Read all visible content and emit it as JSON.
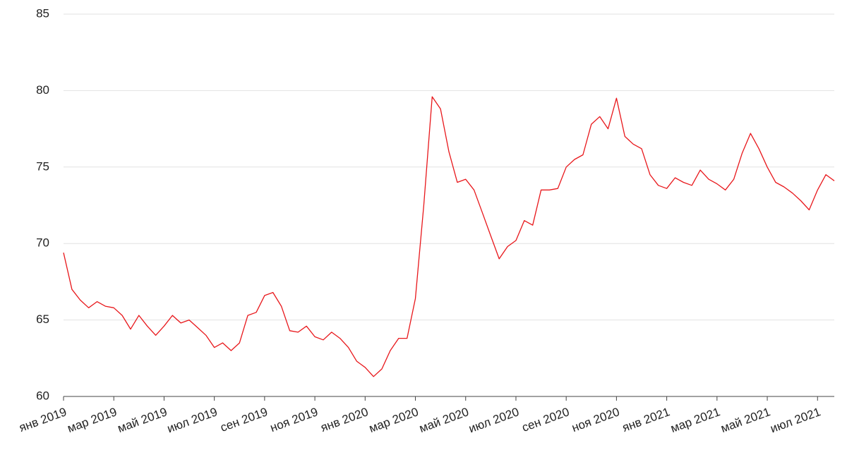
{
  "chart_data": {
    "type": "line",
    "categories": [
      "янв 2019",
      null,
      null,
      null,
      null,
      null,
      "мар 2019",
      null,
      null,
      null,
      null,
      null,
      "май 2019",
      null,
      null,
      null,
      null,
      null,
      "июл 2019",
      null,
      null,
      null,
      null,
      null,
      "сен 2019",
      null,
      null,
      null,
      null,
      null,
      "ноя 2019",
      null,
      null,
      null,
      null,
      null,
      "янв 2020",
      null,
      null,
      null,
      null,
      null,
      "мар 2020",
      null,
      null,
      null,
      null,
      null,
      "май 2020",
      null,
      null,
      null,
      null,
      null,
      "июл 2020",
      null,
      null,
      null,
      null,
      null,
      "сен 2020",
      null,
      null,
      null,
      null,
      null,
      "ноя 2020",
      null,
      null,
      null,
      null,
      null,
      "янв 2021",
      null,
      null,
      null,
      null,
      null,
      "мар 2021",
      null,
      null,
      null,
      null,
      null,
      "май 2021",
      null,
      null,
      null,
      null,
      null,
      "июл 2021",
      null,
      null
    ],
    "values": [
      69.4,
      67.0,
      66.3,
      65.8,
      66.2,
      65.9,
      65.8,
      65.3,
      64.4,
      65.3,
      64.6,
      64.0,
      64.6,
      65.3,
      64.8,
      65.0,
      64.5,
      64.0,
      63.2,
      63.5,
      63.0,
      63.5,
      65.3,
      65.5,
      66.6,
      66.8,
      65.9,
      64.3,
      64.2,
      64.6,
      63.9,
      63.7,
      64.2,
      63.8,
      63.2,
      62.3,
      61.9,
      61.3,
      61.8,
      63.0,
      63.8,
      63.8,
      66.4,
      72.5,
      79.6,
      78.8,
      76.0,
      74.0,
      74.2,
      73.5,
      72.0,
      70.5,
      69.0,
      69.8,
      70.2,
      71.5,
      71.2,
      73.5,
      73.5,
      73.6,
      75.0,
      75.5,
      75.8,
      77.8,
      78.3,
      77.5,
      79.5,
      77.0,
      76.5,
      76.2,
      74.5,
      73.8,
      73.6,
      74.3,
      74.0,
      73.8,
      74.8,
      74.2,
      73.9,
      73.5,
      74.2,
      75.9,
      77.2,
      76.2,
      75.0,
      74.0,
      73.7,
      73.3,
      72.8,
      72.2,
      73.5,
      74.5,
      74.1
    ],
    "color": "#e8171b",
    "ylim": [
      60,
      85
    ],
    "yticks": [
      60,
      65,
      70,
      75,
      80,
      85
    ],
    "grid": true
  }
}
